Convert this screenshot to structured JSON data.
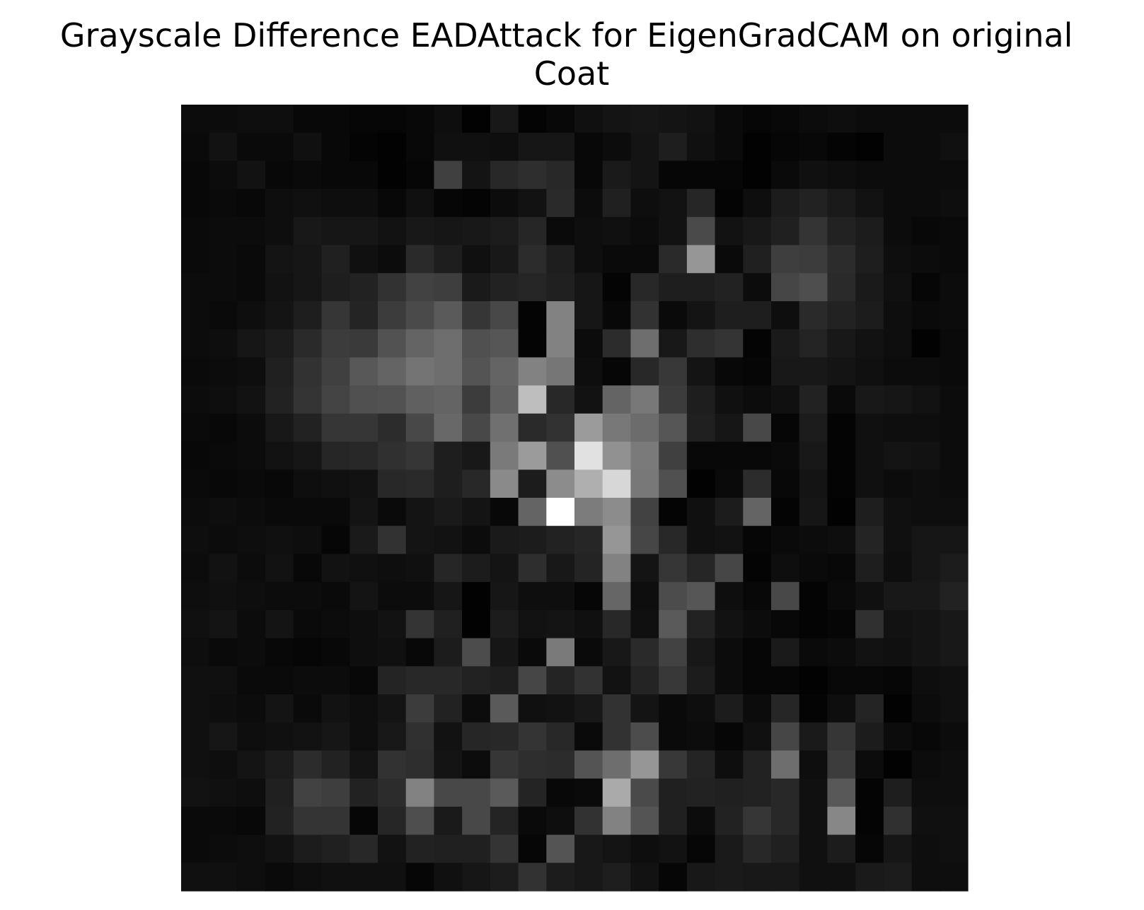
{
  "chart_data": {
    "type": "heatmap",
    "title_lines": [
      "Grayscale Difference EADAttack for EigenGradCAM on original",
      "Coat"
    ],
    "colormap": "gray",
    "vmin": 0,
    "vmax": 255,
    "axes_visible": false,
    "rows": 28,
    "cols": 28,
    "values": [
      [
        12,
        12,
        14,
        14,
        8,
        8,
        6,
        6,
        8,
        14,
        2,
        24,
        4,
        8,
        16,
        20,
        22,
        20,
        18,
        10,
        6,
        8,
        12,
        14,
        12,
        12,
        12,
        12
      ],
      [
        10,
        18,
        10,
        10,
        16,
        8,
        4,
        2,
        8,
        16,
        16,
        14,
        22,
        22,
        8,
        12,
        20,
        30,
        16,
        10,
        2,
        6,
        8,
        4,
        2,
        12,
        12,
        16
      ],
      [
        8,
        12,
        18,
        8,
        10,
        8,
        8,
        2,
        6,
        64,
        20,
        40,
        46,
        40,
        8,
        26,
        20,
        6,
        6,
        6,
        2,
        10,
        16,
        14,
        12,
        12,
        12,
        12
      ],
      [
        8,
        10,
        8,
        14,
        16,
        14,
        14,
        8,
        16,
        6,
        4,
        12,
        18,
        42,
        12,
        32,
        14,
        18,
        38,
        4,
        14,
        28,
        34,
        26,
        18,
        12,
        12,
        14
      ],
      [
        10,
        12,
        12,
        14,
        24,
        22,
        22,
        18,
        24,
        22,
        24,
        28,
        38,
        10,
        14,
        16,
        12,
        18,
        74,
        18,
        24,
        32,
        52,
        34,
        28,
        12,
        8,
        10
      ],
      [
        10,
        12,
        10,
        20,
        22,
        32,
        16,
        12,
        42,
        30,
        16,
        24,
        44,
        30,
        14,
        10,
        10,
        42,
        150,
        10,
        32,
        62,
        60,
        44,
        30,
        14,
        12,
        10
      ],
      [
        12,
        12,
        10,
        18,
        22,
        30,
        34,
        50,
        66,
        62,
        26,
        34,
        38,
        32,
        22,
        4,
        40,
        30,
        30,
        34,
        12,
        70,
        78,
        42,
        26,
        16,
        6,
        12
      ],
      [
        12,
        10,
        14,
        20,
        30,
        54,
        36,
        60,
        74,
        90,
        54,
        72,
        4,
        130,
        22,
        8,
        50,
        10,
        20,
        30,
        30,
        14,
        42,
        34,
        28,
        14,
        10,
        12
      ],
      [
        12,
        14,
        22,
        28,
        42,
        60,
        58,
        82,
        100,
        110,
        80,
        86,
        4,
        130,
        12,
        44,
        110,
        24,
        46,
        52,
        4,
        26,
        36,
        24,
        18,
        14,
        2,
        10
      ],
      [
        10,
        12,
        14,
        32,
        50,
        64,
        88,
        100,
        116,
        110,
        84,
        100,
        130,
        118,
        14,
        6,
        40,
        56,
        20,
        8,
        6,
        24,
        24,
        20,
        16,
        12,
        12,
        10
      ],
      [
        12,
        14,
        18,
        34,
        52,
        68,
        80,
        82,
        96,
        100,
        60,
        96,
        190,
        40,
        18,
        100,
        120,
        60,
        30,
        16,
        12,
        16,
        34,
        10,
        24,
        22,
        18,
        12
      ],
      [
        10,
        8,
        12,
        24,
        34,
        54,
        54,
        44,
        72,
        104,
        72,
        112,
        42,
        50,
        155,
        120,
        108,
        86,
        32,
        22,
        72,
        6,
        28,
        4,
        16,
        14,
        14,
        12
      ],
      [
        8,
        10,
        12,
        18,
        22,
        38,
        40,
        48,
        54,
        30,
        24,
        122,
        155,
        80,
        225,
        145,
        122,
        64,
        8,
        8,
        8,
        10,
        24,
        4,
        16,
        20,
        18,
        12
      ],
      [
        10,
        8,
        10,
        8,
        14,
        16,
        18,
        40,
        42,
        30,
        40,
        138,
        28,
        140,
        175,
        215,
        120,
        80,
        2,
        10,
        44,
        8,
        20,
        4,
        16,
        12,
        14,
        12
      ],
      [
        12,
        14,
        12,
        10,
        10,
        10,
        20,
        10,
        20,
        26,
        20,
        8,
        100,
        255,
        124,
        140,
        66,
        4,
        16,
        28,
        100,
        4,
        22,
        2,
        30,
        16,
        14,
        14
      ],
      [
        14,
        12,
        14,
        16,
        14,
        6,
        26,
        50,
        20,
        18,
        12,
        26,
        28,
        34,
        38,
        150,
        70,
        40,
        16,
        18,
        6,
        10,
        12,
        14,
        36,
        16,
        22,
        22
      ],
      [
        12,
        18,
        12,
        18,
        8,
        18,
        16,
        14,
        16,
        38,
        28,
        20,
        46,
        24,
        36,
        130,
        20,
        54,
        38,
        70,
        4,
        14,
        10,
        8,
        30,
        14,
        22,
        28
      ],
      [
        14,
        16,
        14,
        12,
        12,
        10,
        20,
        12,
        12,
        22,
        2,
        22,
        14,
        14,
        6,
        102,
        14,
        76,
        86,
        14,
        8,
        72,
        4,
        10,
        16,
        24,
        24,
        34
      ],
      [
        16,
        20,
        12,
        20,
        10,
        12,
        14,
        18,
        52,
        32,
        2,
        28,
        18,
        20,
        16,
        40,
        16,
        90,
        34,
        18,
        12,
        8,
        4,
        6,
        48,
        18,
        20,
        24
      ],
      [
        14,
        10,
        12,
        8,
        6,
        8,
        14,
        16,
        8,
        28,
        76,
        22,
        10,
        122,
        10,
        24,
        42,
        66,
        24,
        12,
        6,
        26,
        10,
        12,
        18,
        16,
        20,
        24
      ],
      [
        16,
        16,
        10,
        10,
        12,
        12,
        8,
        36,
        40,
        40,
        34,
        30,
        70,
        36,
        50,
        18,
        36,
        56,
        28,
        12,
        6,
        6,
        2,
        8,
        8,
        6,
        14,
        16
      ],
      [
        16,
        14,
        12,
        20,
        10,
        18,
        14,
        20,
        60,
        34,
        12,
        90,
        16,
        18,
        24,
        50,
        20,
        10,
        14,
        28,
        12,
        38,
        4,
        14,
        36,
        2,
        12,
        16
      ],
      [
        16,
        22,
        14,
        16,
        18,
        22,
        14,
        24,
        48,
        18,
        38,
        40,
        52,
        40,
        10,
        50,
        76,
        10,
        12,
        6,
        16,
        70,
        26,
        54,
        28,
        12,
        8,
        12
      ],
      [
        16,
        14,
        20,
        28,
        44,
        34,
        20,
        50,
        46,
        20,
        12,
        54,
        46,
        44,
        84,
        110,
        150,
        56,
        36,
        14,
        34,
        110,
        14,
        60,
        12,
        2,
        12,
        14
      ],
      [
        18,
        16,
        14,
        32,
        66,
        62,
        34,
        44,
        130,
        72,
        72,
        90,
        36,
        8,
        10,
        170,
        74,
        32,
        34,
        32,
        34,
        40,
        16,
        88,
        4,
        30,
        14,
        14
      ],
      [
        10,
        10,
        8,
        34,
        52,
        52,
        6,
        38,
        78,
        26,
        72,
        36,
        10,
        14,
        50,
        130,
        84,
        32,
        12,
        34,
        54,
        40,
        16,
        135,
        4,
        48,
        16,
        16
      ],
      [
        10,
        12,
        14,
        18,
        28,
        32,
        40,
        18,
        34,
        32,
        32,
        52,
        6,
        84,
        24,
        20,
        14,
        18,
        6,
        26,
        40,
        32,
        16,
        28,
        6,
        22,
        14,
        16
      ],
      [
        16,
        16,
        14,
        10,
        14,
        16,
        16,
        16,
        6,
        16,
        22,
        28,
        50,
        28,
        24,
        30,
        18,
        6,
        24,
        26,
        24,
        24,
        16,
        16,
        26,
        28,
        14,
        14
      ]
    ]
  }
}
